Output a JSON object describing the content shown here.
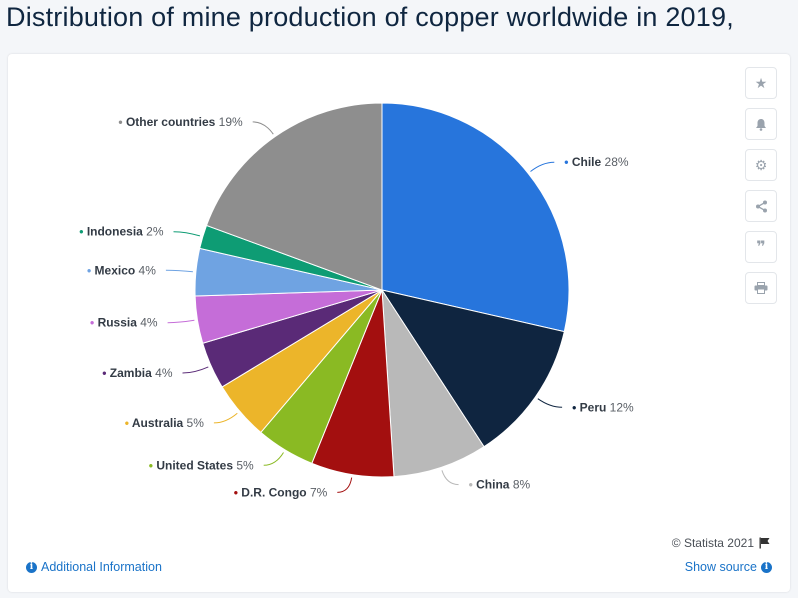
{
  "header": {
    "title": "Distribution of mine production of copper worldwide in 2019,"
  },
  "toolbar": {
    "icons": [
      "star-icon",
      "bell-icon",
      "gear-icon",
      "share-icon",
      "quote-icon",
      "print-icon"
    ]
  },
  "footer": {
    "copyright": "© Statista 2021",
    "additional_info": "Additional Information",
    "show_source": "Show source"
  },
  "chart_data": {
    "type": "pie",
    "title": "",
    "start_angle_deg": 0,
    "direction": "clockwise",
    "slices": [
      {
        "name": "Chile",
        "value": 28,
        "label": "28%",
        "color": "#2775dc"
      },
      {
        "name": "Peru",
        "value": 12,
        "label": "12%",
        "color": "#0f2540"
      },
      {
        "name": "China",
        "value": 8,
        "label": "8%",
        "color": "#b9b9b9"
      },
      {
        "name": "D.R. Congo",
        "value": 7,
        "label": "7%",
        "color": "#a30f0f"
      },
      {
        "name": "United States",
        "value": 5,
        "label": "5%",
        "color": "#8aba23"
      },
      {
        "name": "Australia",
        "value": 5,
        "label": "5%",
        "color": "#ecb52a"
      },
      {
        "name": "Zambia",
        "value": 4,
        "label": "4%",
        "color": "#5a2a77"
      },
      {
        "name": "Russia",
        "value": 4,
        "label": "4%",
        "color": "#c56dd8"
      },
      {
        "name": "Mexico",
        "value": 4,
        "label": "4%",
        "color": "#6fa3e2"
      },
      {
        "name": "Indonesia",
        "value": 2,
        "label": "2%",
        "color": "#0e9c74"
      },
      {
        "name": "Other countries",
        "value": 19,
        "label": "19%",
        "color": "#8e8e8e"
      }
    ]
  }
}
